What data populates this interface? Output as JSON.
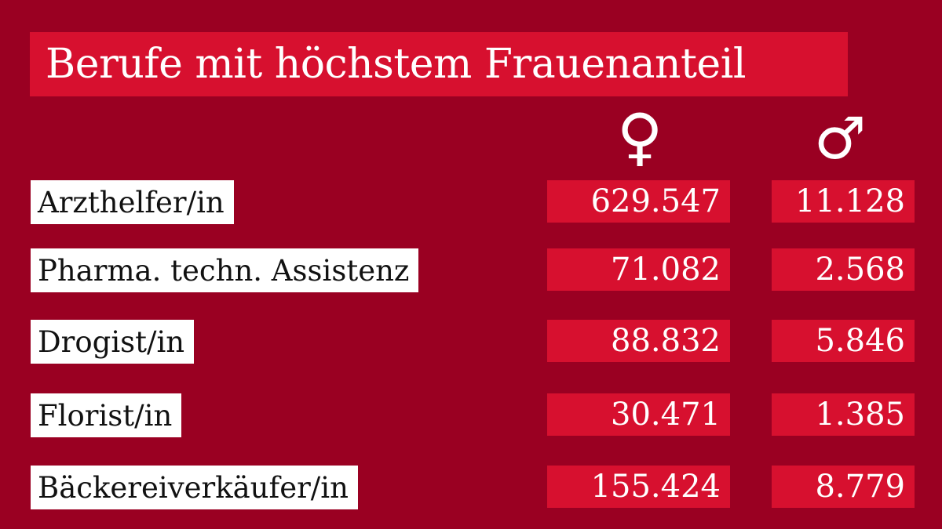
{
  "title": "Berufe mit höchstem Frauenanteil",
  "symbols": {
    "female": "♀",
    "male": "♂"
  },
  "colors": {
    "background": "#9a0022",
    "accent": "#d7102f",
    "label_bg": "#ffffff"
  },
  "chart_data": {
    "type": "table",
    "title": "Berufe mit höchstem Frauenanteil",
    "columns": [
      "♀",
      "♂"
    ],
    "rows": [
      {
        "label": "Arzthelfer/in",
        "female": "629.547",
        "male": "11.128"
      },
      {
        "label": "Pharma. techn. Assistenz",
        "female": "71.082",
        "male": "2.568"
      },
      {
        "label": "Drogist/in",
        "female": "88.832",
        "male": "5.846"
      },
      {
        "label": "Florist/in",
        "female": "30.471",
        "male": "1.385"
      },
      {
        "label": "Bäckereiverkäufer/in",
        "female": "155.424",
        "male": "8.779"
      }
    ]
  }
}
